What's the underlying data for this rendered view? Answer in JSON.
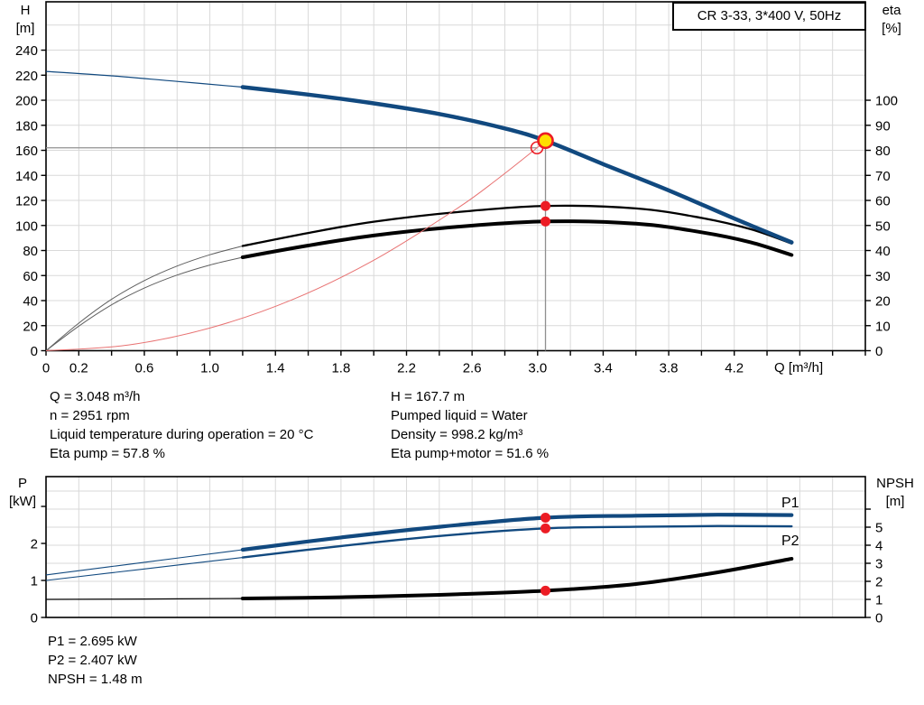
{
  "title_box": {
    "label": "CR 3-33, 3*400 V, 50Hz"
  },
  "colors": {
    "blue": "#11497f",
    "red": "#ec1c24",
    "red_light": "#e87272",
    "yellow": "#ffdf00",
    "black": "#000000",
    "gray_curve": "#5f5f5f",
    "grid": "#d9d9d9",
    "crosshair": "#909090",
    "border": "#000000"
  },
  "axis_corner_labels": {
    "top_left_1": "H",
    "top_left_2": "[m]",
    "top_right_1": "eta",
    "top_right_2": "[%]",
    "bottom_left_1": "P",
    "bottom_left_2": "[kW]",
    "bottom_right_1": "NPSH",
    "bottom_right_2": "[m]",
    "x_axis_title": "Q [m³/h]"
  },
  "annotations": {
    "left_block": {
      "line1": "Q = 3.048 m³/h",
      "line2": "n = 2951 rpm",
      "line3": "Liquid temperature during operation = 20 °C",
      "line4": "Eta pump = 57.8 %"
    },
    "right_block": {
      "line1": "H = 167.7 m",
      "line2": "Pumped liquid = Water",
      "line3": "Density = 998.2 kg/m³",
      "line4": "Eta pump+motor = 51.6 %"
    },
    "bottom_block": {
      "line1": "P1 = 2.695 kW",
      "line2": "P2 = 2.407 kW",
      "line3": "NPSH = 1.48 m"
    }
  },
  "chart_data": [
    {
      "type": "line",
      "title": "CR 3-33, 3*400 V, 50Hz — QH and efficiency curves",
      "xlabel": "Q [m³/h]",
      "ylabel_left": "H [m]",
      "ylabel_right": "eta [%]",
      "plot": {
        "l": 51,
        "t": 2,
        "r": 959,
        "b": 388.5
      },
      "x": {
        "min": 0,
        "max": 5.0,
        "tick_step": 0.2,
        "grid_step": 0.2,
        "labeled": [
          [
            0,
            "0"
          ],
          [
            0.2,
            "0.2"
          ],
          [
            0.6,
            "0.6"
          ],
          [
            1.0,
            "1.0"
          ],
          [
            1.4,
            "1.4"
          ],
          [
            1.8,
            "1.8"
          ],
          [
            2.2,
            "2.2"
          ],
          [
            2.6,
            "2.6"
          ],
          [
            3.0,
            "3.0"
          ],
          [
            3.4,
            "3.4"
          ],
          [
            3.8,
            "3.8"
          ],
          [
            4.2,
            "4.2"
          ]
        ]
      },
      "left": {
        "max": 278.6,
        "ticks": [
          [
            0,
            "0"
          ],
          [
            20,
            "20"
          ],
          [
            40,
            "40"
          ],
          [
            60,
            "60"
          ],
          [
            80,
            "80"
          ],
          [
            100,
            "100"
          ],
          [
            120,
            "120"
          ],
          [
            140,
            "140"
          ],
          [
            160,
            "160"
          ],
          [
            180,
            "180"
          ],
          [
            200,
            "200"
          ],
          [
            220,
            "220"
          ],
          [
            240,
            "240"
          ]
        ]
      },
      "right": {
        "max": 139.3,
        "ticks": [
          [
            0,
            "0"
          ],
          [
            10,
            "10"
          ],
          [
            20,
            "20"
          ],
          [
            30,
            "30"
          ],
          [
            40,
            "40"
          ],
          [
            50,
            "50"
          ],
          [
            60,
            "60"
          ],
          [
            70,
            "70"
          ],
          [
            80,
            "80"
          ],
          [
            90,
            "90"
          ],
          [
            100,
            "100"
          ]
        ]
      },
      "h_grid_axis": "left",
      "h_grid_step": 20,
      "series": [
        {
          "name": "eta-pump",
          "axis": "right",
          "color": "black",
          "thin_color": "gray_curve",
          "thin_until": 1.2,
          "thin_width": 1,
          "width": 2.3,
          "points": [
            [
              0,
              0
            ],
            [
              0.2,
              11
            ],
            [
              0.4,
              20.5
            ],
            [
              0.6,
              28
            ],
            [
              0.8,
              33.8
            ],
            [
              1.0,
              38.3
            ],
            [
              1.2,
              41.8
            ],
            [
              1.6,
              47
            ],
            [
              2.0,
              51.5
            ],
            [
              2.5,
              55.3
            ],
            [
              3.048,
              57.8
            ],
            [
              3.6,
              56.8
            ],
            [
              4.0,
              53
            ],
            [
              4.3,
              48.5
            ],
            [
              4.55,
              42.8
            ]
          ]
        },
        {
          "name": "eta-pump-motor",
          "axis": "right",
          "color": "black",
          "thin_color": "gray_curve",
          "thin_until": 1.2,
          "thin_width": 1,
          "width": 4,
          "points": [
            [
              0,
              0
            ],
            [
              0.2,
              9.8
            ],
            [
              0.4,
              18.3
            ],
            [
              0.6,
              25
            ],
            [
              0.8,
              30.2
            ],
            [
              1.0,
              34.2
            ],
            [
              1.2,
              37.3
            ],
            [
              1.6,
              42
            ],
            [
              2.0,
              46
            ],
            [
              2.5,
              49.4
            ],
            [
              3.048,
              51.6
            ],
            [
              3.6,
              50.7
            ],
            [
              4.0,
              47.3
            ],
            [
              4.3,
              43.3
            ],
            [
              4.55,
              38.2
            ]
          ]
        },
        {
          "name": "system-curve",
          "axis": "left",
          "color": "red_light",
          "thin_until": null,
          "thin_width": 1,
          "width": 1,
          "points": [
            [
              0,
              0
            ],
            [
              0.5,
              4.5
            ],
            [
              1.0,
              18.1
            ],
            [
              1.5,
              40.6
            ],
            [
              2.0,
              72.2
            ],
            [
              2.5,
              112.8
            ],
            [
              2.75,
              136.5
            ],
            [
              2.996,
              162
            ],
            [
              3.048,
              167.7
            ]
          ]
        },
        {
          "name": "qh",
          "axis": "left",
          "color": "blue",
          "thin_color": "blue",
          "thin_until": 1.2,
          "thin_width": 1.2,
          "width": 4.5,
          "points": [
            [
              0,
              223
            ],
            [
              0.4,
              219.5
            ],
            [
              0.8,
              215
            ],
            [
              1.2,
              210.5
            ],
            [
              1.6,
              204.5
            ],
            [
              2.0,
              197.5
            ],
            [
              2.4,
              189
            ],
            [
              2.8,
              177.5
            ],
            [
              3.048,
              167.7
            ],
            [
              3.4,
              149
            ],
            [
              3.8,
              128
            ],
            [
              4.2,
              105.5
            ],
            [
              4.55,
              86.5
            ]
          ]
        }
      ],
      "crosshair": {
        "h_value": 162,
        "h_to_q": 2.996,
        "v_q": 3.048,
        "v_to_value": 167.7,
        "v_axis": "left"
      },
      "markers": [
        {
          "type": "open-circle",
          "q": 2.996,
          "axis": "left",
          "value": 162,
          "r": 6.5
        },
        {
          "type": "duty-point",
          "q": 3.048,
          "axis": "left",
          "value": 167.7,
          "r": 8
        },
        {
          "type": "dot",
          "q": 3.048,
          "axis": "right",
          "value": 57.8,
          "r": 5.5
        },
        {
          "type": "dot",
          "q": 3.048,
          "axis": "right",
          "value": 51.6,
          "r": 5.5
        }
      ],
      "series_labels": []
    },
    {
      "type": "line",
      "title": "Power and NPSH curves",
      "xlabel": "",
      "ylabel_left": "P [kW]",
      "ylabel_right": "NPSH [m]",
      "plot": {
        "l": 51,
        "t": 528,
        "r": 959,
        "b": 684
      },
      "x": {
        "min": 0,
        "max": 5.0,
        "tick_step": null,
        "grid_step": 0.2,
        "labeled": []
      },
      "left": {
        "max": 3.805,
        "ticks": [
          [
            0,
            "0"
          ],
          [
            1,
            "1"
          ],
          [
            2,
            "2"
          ],
          [
            3,
            ""
          ]
        ]
      },
      "right": {
        "max": 7.8,
        "ticks": [
          [
            0,
            "0"
          ],
          [
            1,
            "1"
          ],
          [
            2,
            "2"
          ],
          [
            3,
            "3"
          ],
          [
            4,
            "4"
          ],
          [
            5,
            "5"
          ],
          [
            6,
            ""
          ]
        ]
      },
      "h_grid_axis": "right",
      "h_grid_step": 1,
      "series": [
        {
          "name": "npsh",
          "axis": "right",
          "color": "black",
          "thin_color": "black",
          "thin_until": 1.2,
          "thin_width": 1.2,
          "width": 4,
          "points": [
            [
              0,
              1.0
            ],
            [
              0.6,
              1.02
            ],
            [
              1.2,
              1.05
            ],
            [
              1.8,
              1.12
            ],
            [
              2.4,
              1.25
            ],
            [
              3.048,
              1.48
            ],
            [
              3.6,
              1.85
            ],
            [
              4.1,
              2.5
            ],
            [
              4.55,
              3.25
            ]
          ]
        },
        {
          "name": "p2",
          "axis": "left",
          "color": "blue",
          "thin_color": "blue",
          "thin_until": 1.2,
          "thin_width": 1.1,
          "width": 2.4,
          "points": [
            [
              0,
              1.0
            ],
            [
              0.6,
              1.31
            ],
            [
              1.2,
              1.62
            ],
            [
              1.8,
              1.93
            ],
            [
              2.4,
              2.2
            ],
            [
              3.048,
              2.407
            ],
            [
              3.6,
              2.45
            ],
            [
              4.1,
              2.47
            ],
            [
              4.55,
              2.46
            ]
          ]
        },
        {
          "name": "p1",
          "axis": "left",
          "color": "blue",
          "thin_color": "blue",
          "thin_until": 1.2,
          "thin_width": 1.1,
          "width": 4.2,
          "points": [
            [
              0,
              1.15
            ],
            [
              0.6,
              1.49
            ],
            [
              1.2,
              1.83
            ],
            [
              1.8,
              2.16
            ],
            [
              2.4,
              2.45
            ],
            [
              3.048,
              2.695
            ],
            [
              3.6,
              2.75
            ],
            [
              4.1,
              2.775
            ],
            [
              4.55,
              2.765
            ]
          ]
        }
      ],
      "crosshair": null,
      "markers": [
        {
          "type": "dot",
          "q": 3.048,
          "axis": "left",
          "value": 2.695,
          "r": 5.5
        },
        {
          "type": "dot",
          "q": 3.048,
          "axis": "left",
          "value": 2.407,
          "r": 5.5
        },
        {
          "type": "dot",
          "q": 3.048,
          "axis": "right",
          "value": 1.48,
          "r": 5.5
        }
      ],
      "series_labels": [
        {
          "text": "P1",
          "x": 866,
          "y": 562
        },
        {
          "text": "P2",
          "x": 866,
          "y": 604
        }
      ]
    }
  ]
}
